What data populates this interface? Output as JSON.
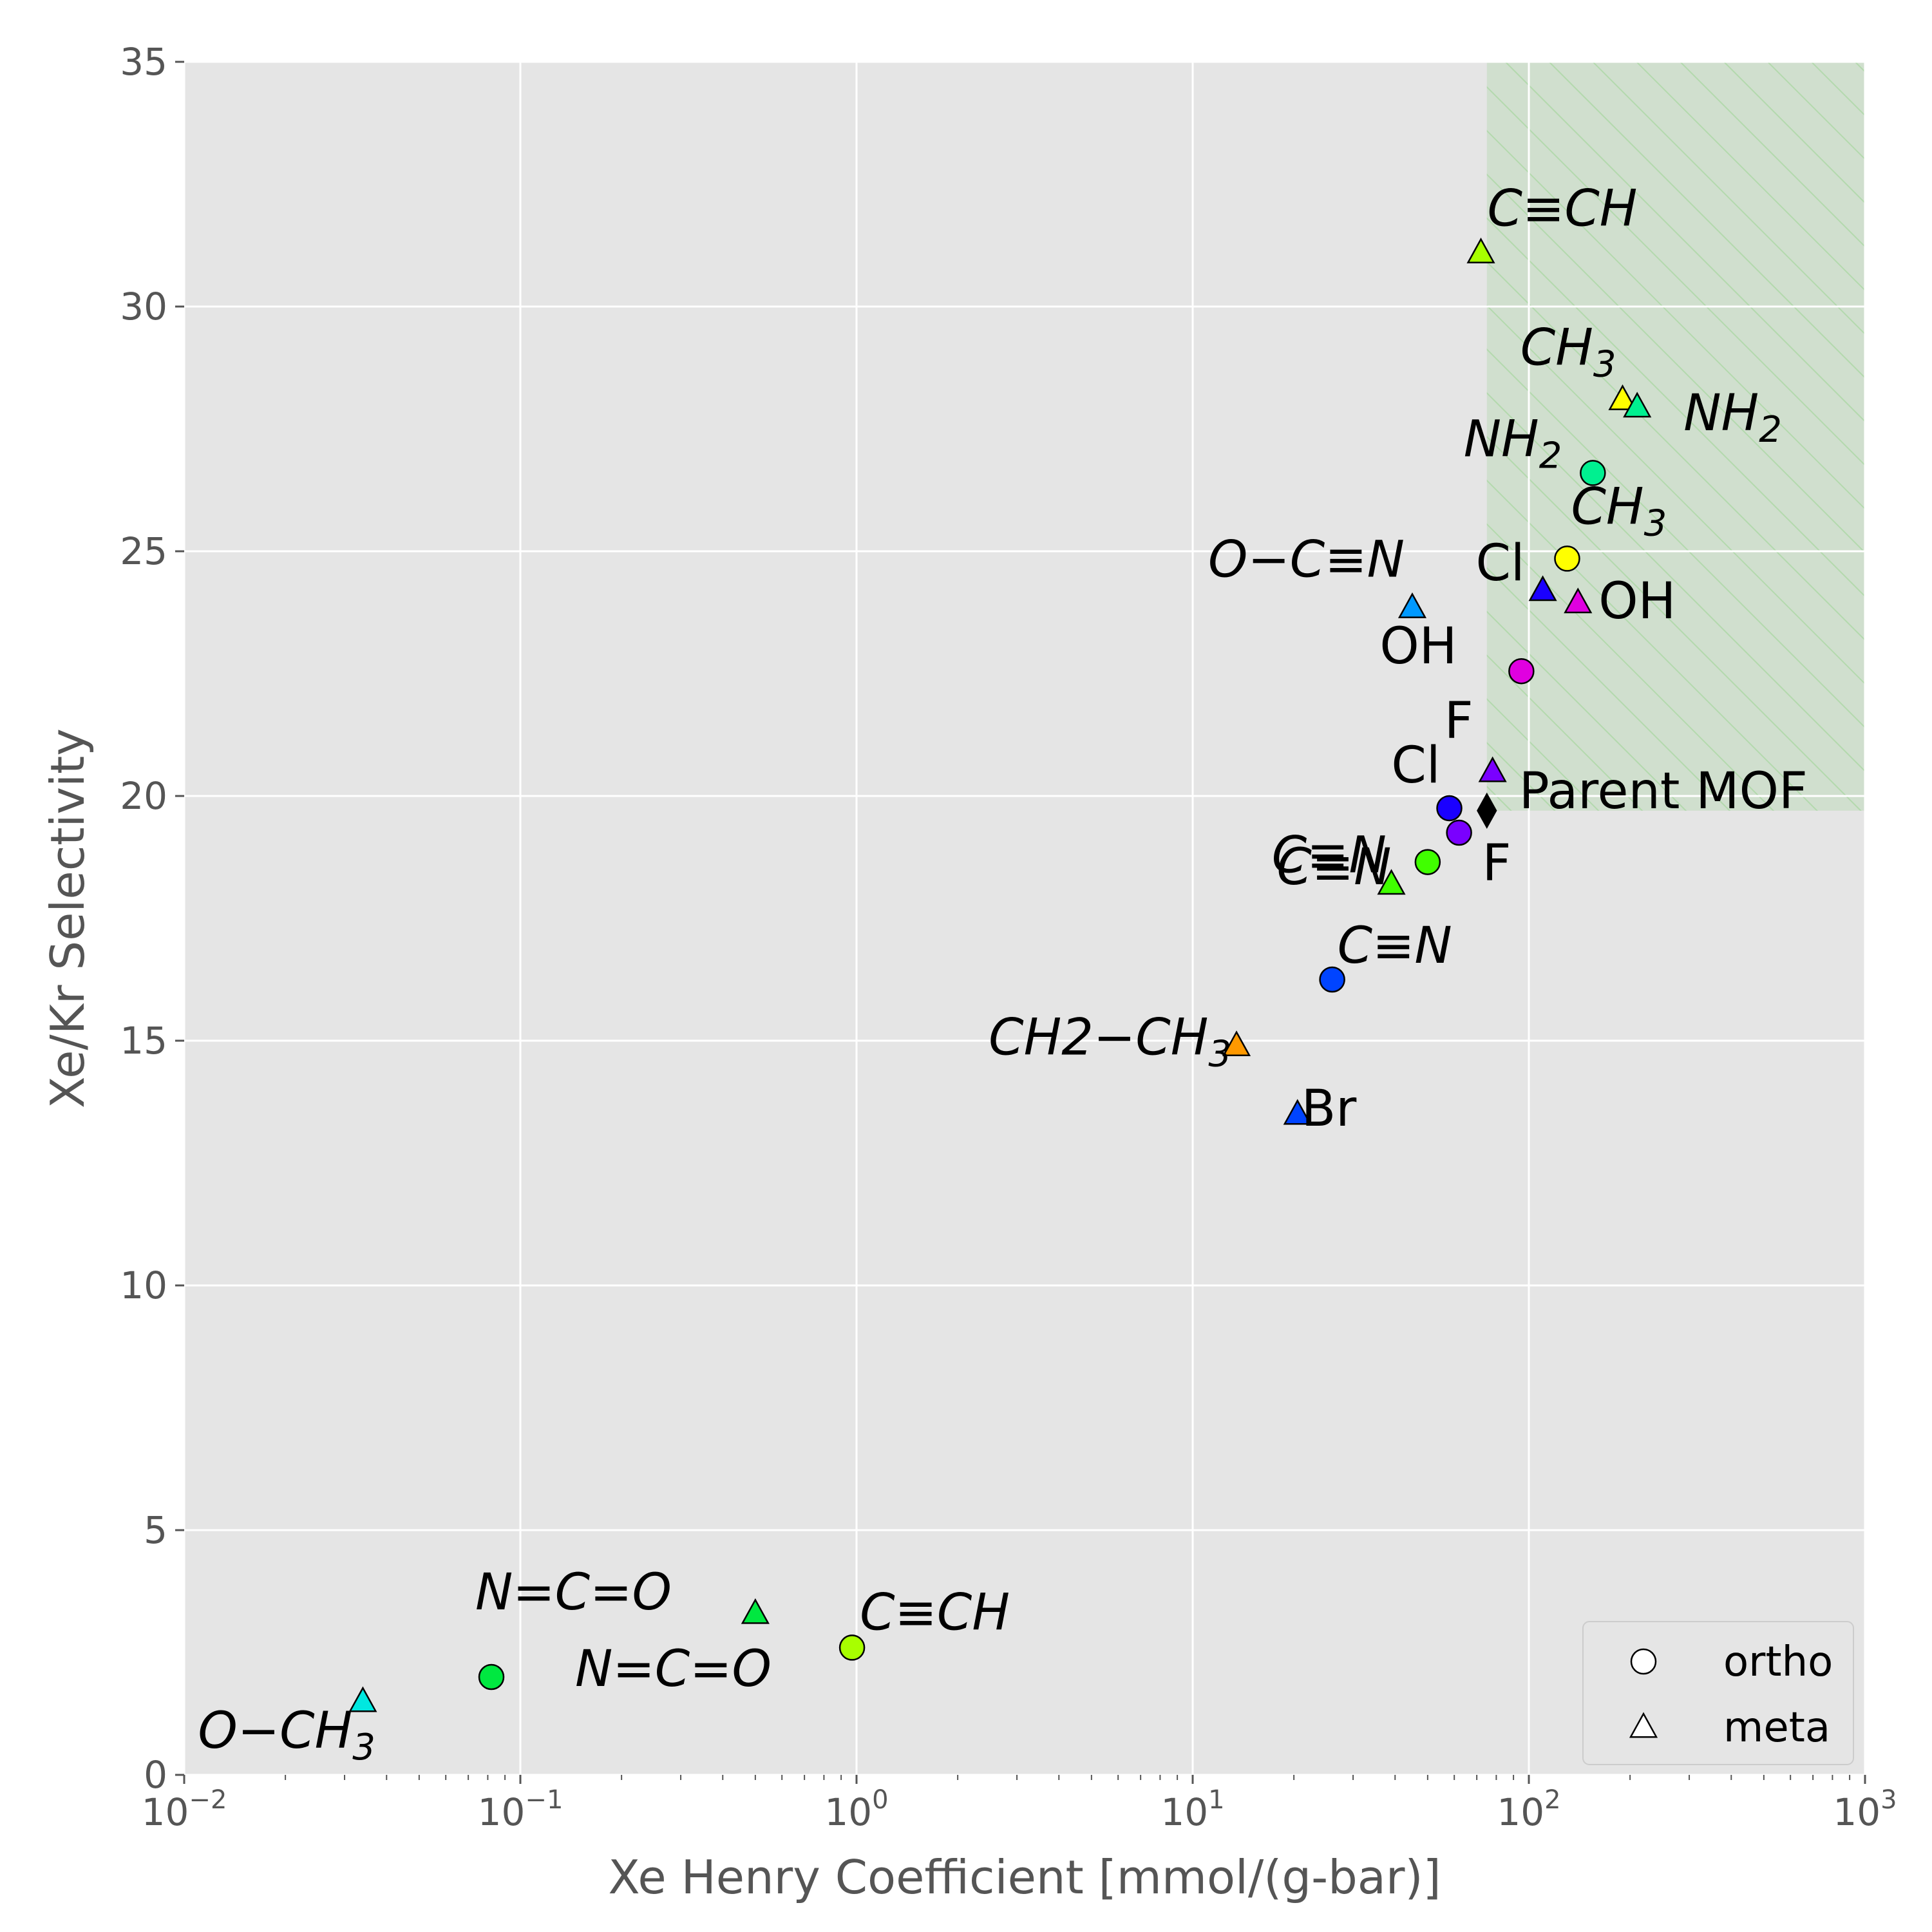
{
  "chart_data": {
    "type": "scatter",
    "title": "",
    "xlabel": "Xe Henry Coefficient [mmol/(g-bar)]",
    "ylabel": "Xe/Kr Selectivity",
    "xscale": "log",
    "xlim": [
      0.01,
      1000
    ],
    "ylim": [
      0,
      35
    ],
    "grid": true,
    "x_ticks": [
      0.01,
      0.1,
      1,
      10,
      100,
      1000
    ],
    "x_tick_labels": [
      {
        "base": "10",
        "exp": "−2"
      },
      {
        "base": "10",
        "exp": "−1"
      },
      {
        "base": "10",
        "exp": "0"
      },
      {
        "base": "10",
        "exp": "1"
      },
      {
        "base": "10",
        "exp": "2"
      },
      {
        "base": "10",
        "exp": "3"
      }
    ],
    "y_ticks": [
      0,
      5,
      10,
      15,
      20,
      25,
      30,
      35
    ],
    "y_tick_labels": [
      "0",
      "5",
      "10",
      "15",
      "20",
      "25",
      "30",
      "35"
    ],
    "highlight_region": {
      "x_min": 75,
      "x_max": 1000,
      "y_min": 19.7,
      "y_max": 35,
      "fill": "#a8d5a2",
      "hatch": true
    },
    "legend": {
      "placement": "bottom-right",
      "entries": [
        {
          "marker": "circle",
          "label": "ortho"
        },
        {
          "marker": "triangle",
          "label": "meta"
        }
      ]
    },
    "points": [
      {
        "x": 75,
        "y": 19.7,
        "marker": "diamond",
        "color": "#000000",
        "label": "Parent MOF",
        "math": false
      },
      {
        "x": 72,
        "y": 31.1,
        "marker": "triangle",
        "color": "#a8ff00",
        "label": "C≡CH",
        "math": true
      },
      {
        "x": 190,
        "y": 28.1,
        "marker": "triangle",
        "color": "#ffff00",
        "label": "CH3",
        "math": true
      },
      {
        "x": 210,
        "y": 27.95,
        "marker": "triangle",
        "color": "#00f090",
        "label": "NH2",
        "math": true
      },
      {
        "x": 155,
        "y": 26.6,
        "marker": "circle",
        "color": "#00f090",
        "label": "NH2",
        "math": true
      },
      {
        "x": 130,
        "y": 24.85,
        "marker": "circle",
        "color": "#ffff00",
        "label": "CH3",
        "math": true
      },
      {
        "x": 110,
        "y": 24.2,
        "marker": "triangle",
        "color": "#1a00ff",
        "label": "Cl",
        "math": false
      },
      {
        "x": 140,
        "y": 23.95,
        "marker": "triangle",
        "color": "#e000e0",
        "label": "OH",
        "math": false
      },
      {
        "x": 45,
        "y": 23.85,
        "marker": "triangle",
        "color": "#0099ff",
        "label": "O−C≡N",
        "math": true
      },
      {
        "x": 95,
        "y": 22.55,
        "marker": "circle",
        "color": "#e000e0",
        "label": "OH",
        "math": false
      },
      {
        "x": 78,
        "y": 20.5,
        "marker": "triangle",
        "color": "#7a00ff",
        "label": "F",
        "math": false
      },
      {
        "x": 58,
        "y": 19.75,
        "marker": "circle",
        "color": "#1a00ff",
        "label": "Cl",
        "math": false
      },
      {
        "x": 62,
        "y": 19.25,
        "marker": "circle",
        "color": "#7a00ff",
        "label": "F",
        "math": false
      },
      {
        "x": 50,
        "y": 18.65,
        "marker": "circle",
        "color": "#40ff00",
        "label": "C≡N",
        "math": true
      },
      {
        "x": 39,
        "y": 18.2,
        "marker": "triangle",
        "color": "#40ff00",
        "label": "C≡N",
        "math": true
      },
      {
        "x": 26,
        "y": 16.25,
        "marker": "circle",
        "color": "#0044ff",
        "label": "C≡N",
        "math": true
      },
      {
        "x": 13.5,
        "y": 14.9,
        "marker": "triangle",
        "color": "#ff9900",
        "label": "CH2−CH3",
        "math": true
      },
      {
        "x": 20.5,
        "y": 13.5,
        "marker": "triangle",
        "color": "#0044ff",
        "label": "Br",
        "math": false
      },
      {
        "x": 0.5,
        "y": 3.3,
        "marker": "triangle",
        "color": "#00e840",
        "label": "N=C=O",
        "math": true
      },
      {
        "x": 0.97,
        "y": 2.6,
        "marker": "circle",
        "color": "#a8ff00",
        "label": "C≡CH",
        "math": true
      },
      {
        "x": 0.082,
        "y": 2.0,
        "marker": "circle",
        "color": "#00e840",
        "label": "N=C=O",
        "math": true
      },
      {
        "x": 0.034,
        "y": 1.5,
        "marker": "triangle",
        "color": "#00e8e0",
        "label": "O−CH3",
        "math": true
      }
    ]
  }
}
